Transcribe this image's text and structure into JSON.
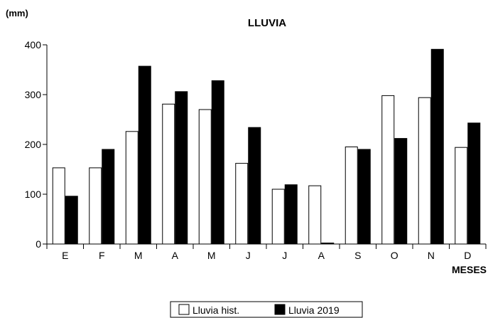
{
  "chart_data": {
    "type": "bar",
    "title": "LLUVIA",
    "ylabel": "(mm)",
    "xlabel": "MESES",
    "categories": [
      "E",
      "F",
      "M",
      "A",
      "M",
      "J",
      "J",
      "A",
      "S",
      "O",
      "N",
      "D"
    ],
    "yticks": [
      "0",
      "100",
      "200",
      "300",
      "400"
    ],
    "ylim": [
      0,
      400
    ],
    "grid": false,
    "legend_position": "bottom-center",
    "series": [
      {
        "name": "Lluvia hist.",
        "color": "#ffffff",
        "values": [
          153,
          153,
          226,
          281,
          270,
          162,
          110,
          117,
          195,
          298,
          294,
          194
        ]
      },
      {
        "name": "Lluvia 2019",
        "color": "#000000",
        "values": [
          96,
          190,
          357,
          306,
          328,
          234,
          119,
          2,
          190,
          212,
          391,
          243
        ]
      }
    ]
  }
}
